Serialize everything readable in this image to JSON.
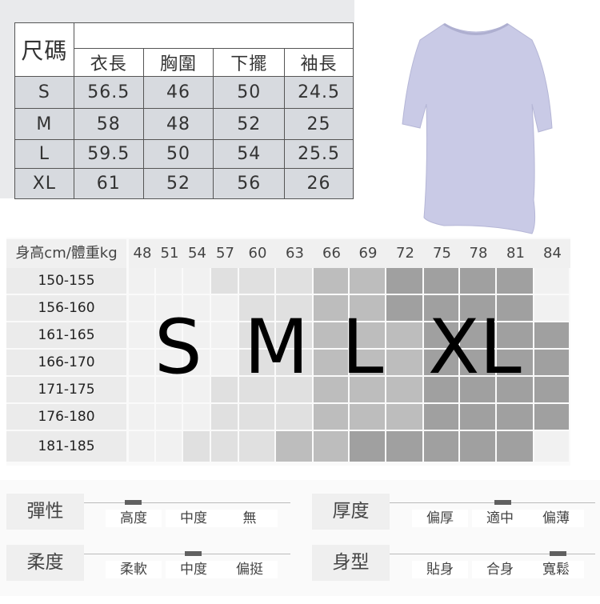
{
  "size_table": {
    "corner": "尺碼",
    "columns": [
      "衣長",
      "胸圍",
      "下擺",
      "袖長"
    ],
    "rows": [
      {
        "size": "S",
        "values": [
          "56.5",
          "46",
          "50",
          "24.5"
        ]
      },
      {
        "size": "M",
        "values": [
          "58",
          "48",
          "52",
          "25"
        ]
      },
      {
        "size": "L",
        "values": [
          "59.5",
          "50",
          "54",
          "25.5"
        ]
      },
      {
        "size": "XL",
        "values": [
          "61",
          "52",
          "56",
          "26"
        ]
      }
    ]
  },
  "product_image": {
    "description_icon": "tshirt-icon",
    "color": "#c9cae6"
  },
  "fit_grid": {
    "header": "身高cm/體重kg",
    "weights": [
      "48",
      "51",
      "54",
      "57",
      "60",
      "63",
      "66",
      "69",
      "72",
      "75",
      "78",
      "81",
      "84"
    ],
    "heights": [
      "150-155",
      "156-160",
      "161-165",
      "166-170",
      "171-175",
      "176-180",
      "181-185"
    ],
    "levels": [
      [
        0,
        0,
        0,
        1,
        1,
        1,
        2,
        2,
        3,
        3,
        3,
        3,
        0
      ],
      [
        0,
        0,
        0,
        0,
        1,
        1,
        2,
        2,
        3,
        3,
        3,
        3,
        0
      ],
      [
        0,
        0,
        0,
        0,
        1,
        1,
        2,
        2,
        2,
        3,
        3,
        3,
        3
      ],
      [
        0,
        0,
        0,
        0,
        1,
        1,
        2,
        2,
        2,
        3,
        3,
        3,
        3
      ],
      [
        0,
        0,
        0,
        1,
        1,
        1,
        2,
        2,
        2,
        3,
        3,
        3,
        3
      ],
      [
        0,
        0,
        0,
        1,
        1,
        1,
        2,
        2,
        2,
        3,
        3,
        3,
        3
      ],
      [
        0,
        0,
        1,
        1,
        1,
        2,
        2,
        3,
        3,
        3,
        3,
        3,
        0
      ]
    ],
    "level_colors": [
      "#f1f1f1",
      "#e0e0e0",
      "#bdbdbd",
      "#a0a0a0"
    ],
    "size_labels": [
      "S",
      "M",
      "L",
      "XL"
    ]
  },
  "attributes": [
    {
      "label": "彈性",
      "options": [
        "高度",
        "中度",
        "無"
      ],
      "selected": 0
    },
    {
      "label": "厚度",
      "options": [
        "偏厚",
        "適中",
        "偏薄"
      ],
      "selected": 1
    },
    {
      "label": "柔度",
      "options": [
        "柔軟",
        "中度",
        "偏挺"
      ],
      "selected": 1
    },
    {
      "label": "身型",
      "options": [
        "貼身",
        "合身",
        "寬鬆"
      ],
      "selected": 2
    }
  ]
}
